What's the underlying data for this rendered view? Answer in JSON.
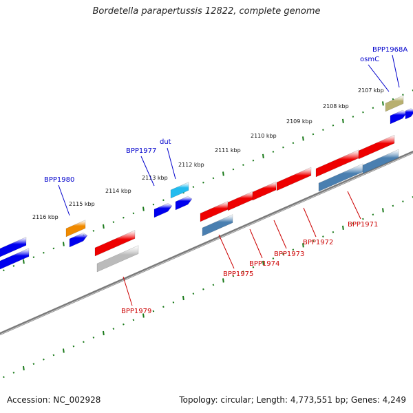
{
  "title": "Bordetella parapertussis 12822, complete genome",
  "footer": {
    "accession": "Accession: NC_002928",
    "summary": "Topology: circular; Length: 4,773,551 bp; Genes: 4,249"
  },
  "colors": {
    "backbone": "#7a7a7a",
    "tick": "#1a7a1a",
    "forward_label": "#0000cc",
    "reverse_label": "#cc0000",
    "forward_cds": "#0000ee",
    "reverse_cds": "#ee0000",
    "rna": "#4a7fb0",
    "pseudo": "#bbbbbb",
    "orange": "#f08a00",
    "cyan": "#22bbee",
    "olive": "#b8b070"
  },
  "scale_ticks": [
    "2107 kbp",
    "2108 kbp",
    "2109 kbp",
    "2110 kbp",
    "2111 kbp",
    "2112 kbp",
    "2113 kbp",
    "2114 kbp",
    "2115 kbp",
    "2116 kbp"
  ],
  "forward_labels": [
    "BPP1968A",
    "osmC",
    "dut",
    "BPP1977",
    "BPP1980"
  ],
  "reverse_labels": [
    "BPP1971",
    "BPP1972",
    "BPP1973",
    "BPP1974",
    "BPP1975",
    "BPP1979"
  ]
}
